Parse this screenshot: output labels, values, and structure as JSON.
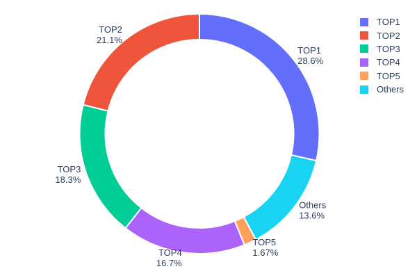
{
  "chart_data": {
    "type": "pie",
    "title": "",
    "hole": 0.786,
    "direction": "clockwise",
    "start_angle_deg": 0,
    "legend_position": "right",
    "background": "#ffffff",
    "text_color": "#2a3f5f",
    "series": [
      {
        "label": "TOP1",
        "value": 28.6,
        "pct_label": "28.6%",
        "color": "#636EFA"
      },
      {
        "label": "TOP2",
        "value": 21.1,
        "pct_label": "21.1%",
        "color": "#EF553B"
      },
      {
        "label": "TOP3",
        "value": 18.3,
        "pct_label": "18.3%",
        "color": "#00CC96"
      },
      {
        "label": "TOP4",
        "value": 16.7,
        "pct_label": "16.7%",
        "color": "#AB63FA"
      },
      {
        "label": "TOP5",
        "value": 1.67,
        "pct_label": "1.67%",
        "color": "#FFA15A"
      },
      {
        "label": "Others",
        "value": 13.6,
        "pct_label": "13.6%",
        "color": "#19D3F3"
      }
    ],
    "clockwise_order": [
      "TOP1",
      "Others",
      "TOP5",
      "TOP4",
      "TOP3",
      "TOP2"
    ]
  }
}
